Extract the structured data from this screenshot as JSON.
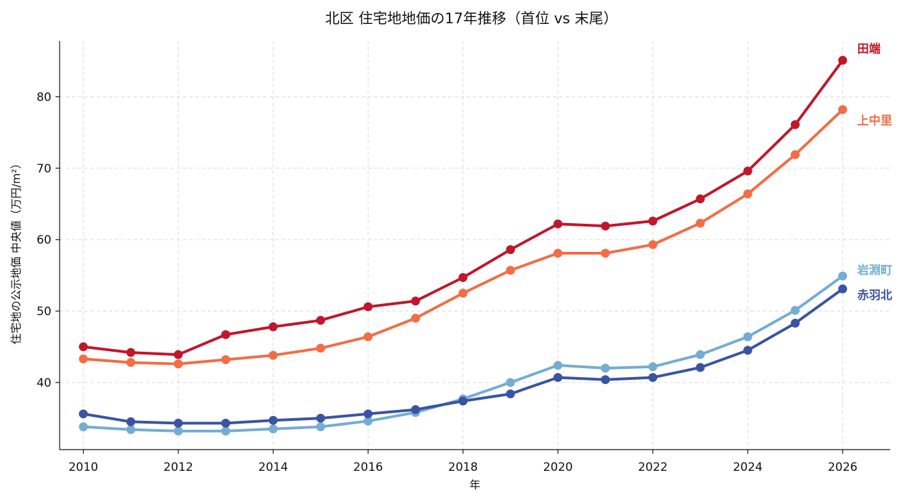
{
  "chart_data": {
    "type": "line",
    "title": "北区 住宅地地価の17年推移（首位 vs 末尾）",
    "xlabel": "年",
    "ylabel": "住宅地の公示地価 中央値（万円/m²）",
    "xlim": [
      2009.5,
      2027
    ],
    "ylim": [
      30.6,
      87.8
    ],
    "xticks": [
      2010,
      2012,
      2014,
      2016,
      2018,
      2020,
      2022,
      2024,
      2026
    ],
    "yticks": [
      40,
      50,
      60,
      70,
      80
    ],
    "grid": true,
    "x": [
      2010,
      2011,
      2012,
      2013,
      2014,
      2015,
      2016,
      2017,
      2018,
      2019,
      2020,
      2021,
      2022,
      2023,
      2024,
      2025,
      2026
    ],
    "series": [
      {
        "name": "田端",
        "color": "#c0172b",
        "values": [
          45.0,
          44.2,
          43.9,
          46.7,
          47.8,
          48.7,
          50.6,
          51.4,
          54.7,
          58.6,
          62.2,
          61.9,
          62.6,
          65.7,
          69.6,
          76.1,
          85.1
        ]
      },
      {
        "name": "上中里",
        "color": "#f26d45",
        "values": [
          43.3,
          42.8,
          42.6,
          43.2,
          43.8,
          44.8,
          46.4,
          49.0,
          52.5,
          55.7,
          58.1,
          58.1,
          59.3,
          62.3,
          66.4,
          71.9,
          78.2
        ]
      },
      {
        "name": "岩淵町",
        "color": "#74add1",
        "values": [
          33.8,
          33.4,
          33.2,
          33.2,
          33.5,
          33.8,
          34.6,
          35.8,
          37.7,
          40.0,
          42.4,
          42.0,
          42.2,
          43.9,
          46.4,
          50.1,
          54.9
        ]
      },
      {
        "name": "赤羽北",
        "color": "#3a54a3",
        "values": [
          35.6,
          34.5,
          34.3,
          34.3,
          34.7,
          35.0,
          35.6,
          36.2,
          37.4,
          38.4,
          40.7,
          40.4,
          40.7,
          42.1,
          44.5,
          48.3,
          53.1
        ]
      }
    ]
  }
}
